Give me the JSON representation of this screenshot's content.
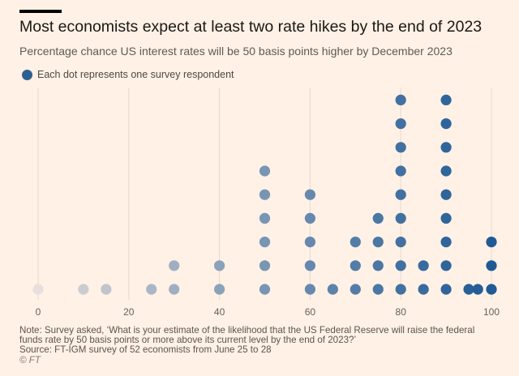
{
  "title": "Most economists expect at least two rate hikes by the end of 2023",
  "subtitle": "Percentage chance US interest rates will be 50 basis points higher by December 2023",
  "legend": {
    "label": "Each dot represents one survey respondent",
    "color": "#2d5f91"
  },
  "note_line1": "Note: Survey asked, ‘What is your estimate of the likelihood that the US Federal Reserve will raise the federal",
  "note_line2": "funds rate by 50 basis points or more above its current level by the end of 2023?’",
  "source": "Source: FT-IGM survey of 52 economists from June 25 to 28",
  "logo": "© FT",
  "chart_data": {
    "type": "scatter",
    "title": "Most economists expect at least two rate hikes by the end of 2023",
    "subtitle": "Percentage chance US interest rates will be 50 basis points higher by December 2023",
    "xlim": [
      0,
      100
    ],
    "xticks": [
      0,
      20,
      40,
      60,
      80,
      100
    ],
    "grid": true,
    "legend": "top-left",
    "unit": "one survey respondent per dot",
    "respondents": [
      {
        "value": 0,
        "count": 1
      },
      {
        "value": 10,
        "count": 1
      },
      {
        "value": 15,
        "count": 1
      },
      {
        "value": 25,
        "count": 1
      },
      {
        "value": 30,
        "count": 2
      },
      {
        "value": 40,
        "count": 2
      },
      {
        "value": 50,
        "count": 6
      },
      {
        "value": 60,
        "count": 5
      },
      {
        "value": 65,
        "count": 1
      },
      {
        "value": 70,
        "count": 3
      },
      {
        "value": 75,
        "count": 4
      },
      {
        "value": 80,
        "count": 9
      },
      {
        "value": 85,
        "count": 2
      },
      {
        "value": 90,
        "count": 9
      },
      {
        "value": 95,
        "count": 1
      },
      {
        "value": 97,
        "count": 1
      },
      {
        "value": 100,
        "count": 3
      }
    ],
    "color_scale": {
      "low": "#e7dfdb",
      "high": "#1f5a95"
    }
  }
}
